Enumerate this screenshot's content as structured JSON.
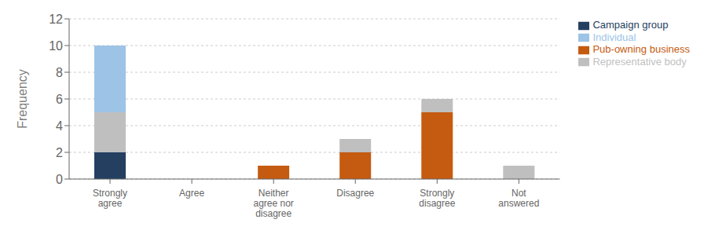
{
  "chart_data": {
    "type": "bar",
    "stacked": true,
    "grid": true,
    "legend": "right",
    "ylabel": "Frequency",
    "categories": [
      "Strongly\nagree",
      "Agree",
      "Neither\nagree nor\ndisagree",
      "Disagree",
      "Strongly\ndisagree",
      "Not\nanswered"
    ],
    "series": [
      {
        "name": "Campaign group",
        "color": "#243F60",
        "values": [
          2,
          0,
          0,
          0,
          0,
          0
        ]
      },
      {
        "name": "Pub-owning business",
        "color": "#C55A11",
        "values": [
          0,
          0,
          1,
          2,
          5,
          0
        ]
      },
      {
        "name": "Representative body",
        "color": "#BFBFBF",
        "values": [
          3,
          0,
          0,
          1,
          1,
          1
        ]
      },
      {
        "name": "Individual",
        "color": "#9DC3E6",
        "values": [
          5,
          0,
          0,
          0,
          0,
          0
        ]
      }
    ],
    "ylim": [
      0,
      12
    ],
    "yticks": [
      0,
      2,
      4,
      6,
      8,
      10,
      12
    ]
  }
}
